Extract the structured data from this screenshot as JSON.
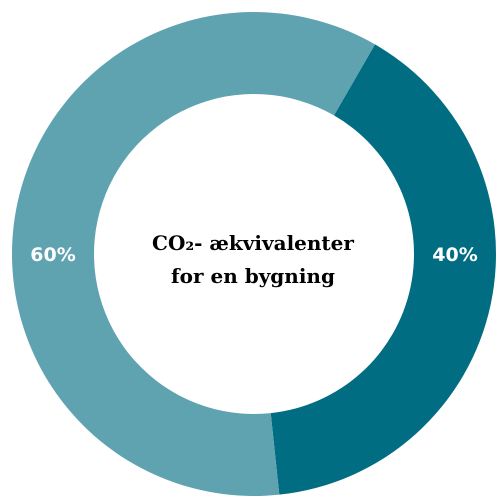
{
  "chart_data": {
    "type": "pie",
    "title": "",
    "center_label": {
      "line1": "CO₂- ækvivalenter",
      "line2": "for en bygning"
    },
    "slices": [
      {
        "label": "40%",
        "value": 40,
        "color": "#016d82"
      },
      {
        "label": "60%",
        "value": 60,
        "color": "#5fa3b1"
      }
    ],
    "start_angle_deg": 30,
    "direction": "clockwise",
    "legend": "none",
    "background": "#ffffff"
  }
}
